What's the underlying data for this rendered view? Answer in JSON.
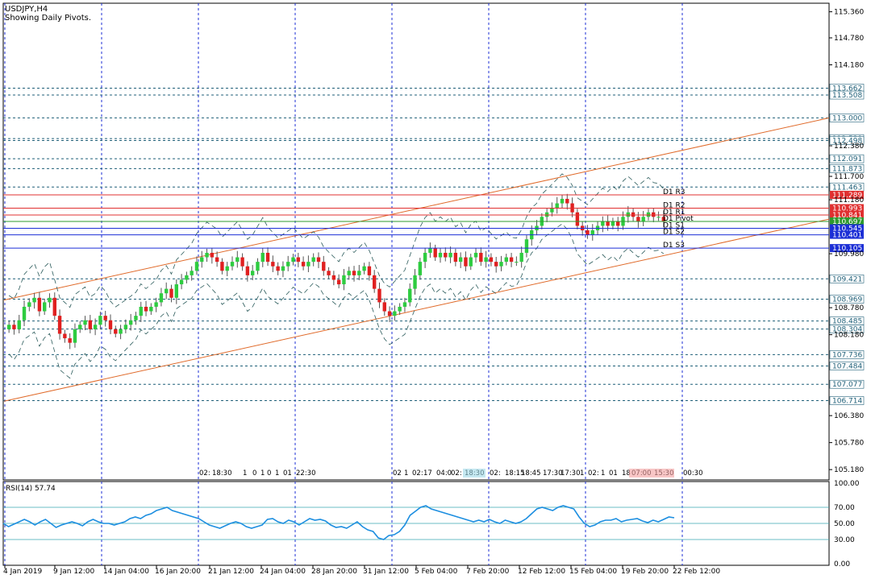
{
  "chart_data": {
    "type": "candlestick",
    "symbol_label": "USDJPY,H4",
    "subtitle": "Showing Daily Pivots.",
    "price_axis": {
      "ylim": [
        104.95,
        115.55
      ],
      "ticks": [
        "115.360",
        "114.780",
        "114.180",
        "112.380",
        "111.700",
        "111.180",
        "109.980",
        "108.780",
        "108.180",
        "106.380",
        "105.780",
        "105.180"
      ]
    },
    "horizontal_levels_dotted": [
      {
        "value": 113.662,
        "label": "113.662"
      },
      {
        "value": 113.508,
        "label": "113.508"
      },
      {
        "value": 113.0,
        "label": "113.000"
      },
      {
        "value": 112.539,
        "label": "112.539"
      },
      {
        "value": 112.498,
        "label": "112.498"
      },
      {
        "value": 112.091,
        "label": "112.091"
      },
      {
        "value": 111.873,
        "label": "111.873"
      },
      {
        "value": 111.463,
        "label": "111.463"
      },
      {
        "value": 109.421,
        "label": "109.421"
      },
      {
        "value": 108.969,
        "label": "108.969"
      },
      {
        "value": 108.485,
        "label": "108.485"
      },
      {
        "value": 108.304,
        "label": "108.304"
      },
      {
        "value": 107.736,
        "label": "107.736"
      },
      {
        "value": 107.484,
        "label": "107.484"
      },
      {
        "value": 107.077,
        "label": "107.077"
      },
      {
        "value": 106.714,
        "label": "106.714"
      }
    ],
    "pivots": [
      {
        "name": "D1 R3",
        "value": 111.289,
        "label": "111.289",
        "color": "#e03030"
      },
      {
        "name": "D1 R2",
        "value": 110.993,
        "label": "110.993",
        "color": "#e03030"
      },
      {
        "name": "D1 R1",
        "value": 110.841,
        "label": "110.841",
        "color": "#e03030"
      },
      {
        "name": "D1 Pivot",
        "value": 110.697,
        "label": "110.697",
        "color": "#2e9a2e"
      },
      {
        "name": "D1 S1",
        "value": 110.545,
        "label": "110.545",
        "color": "#1c2fd6"
      },
      {
        "name": "D1 S2",
        "value": 110.401,
        "label": "110.401",
        "color": "#1c2fd6"
      },
      {
        "name": "D1 S3",
        "value": 110.105,
        "label": "110.105",
        "color": "#1c2fd6"
      }
    ],
    "channel_upper": [
      [
        5,
        108.95
      ],
      [
        1028,
        113.0
      ]
    ],
    "channel_lower": [
      [
        5,
        106.7
      ],
      [
        1028,
        110.75
      ]
    ],
    "close_series": [
      108.4,
      108.3,
      108.5,
      108.8,
      108.9,
      109.0,
      108.7,
      108.9,
      109.0,
      108.6,
      108.2,
      108.1,
      108.0,
      108.3,
      108.4,
      108.5,
      108.3,
      108.4,
      108.6,
      108.5,
      108.3,
      108.2,
      108.3,
      108.4,
      108.5,
      108.6,
      108.8,
      108.7,
      108.8,
      108.9,
      109.1,
      109.2,
      109.0,
      109.3,
      109.4,
      109.5,
      109.6,
      109.8,
      109.9,
      110.0,
      109.9,
      109.8,
      109.6,
      109.7,
      109.8,
      109.9,
      109.7,
      109.5,
      109.6,
      109.8,
      110.0,
      109.8,
      109.7,
      109.6,
      109.7,
      109.8,
      109.9,
      109.8,
      109.7,
      109.8,
      109.9,
      109.8,
      109.6,
      109.5,
      109.4,
      109.3,
      109.5,
      109.6,
      109.5,
      109.6,
      109.7,
      109.5,
      109.2,
      108.9,
      108.7,
      108.6,
      108.7,
      108.8,
      108.9,
      109.2,
      109.5,
      109.8,
      110.0,
      110.1,
      109.9,
      110.0,
      109.9,
      110.0,
      109.8,
      109.9,
      109.7,
      109.9,
      110.0,
      109.8,
      109.9,
      109.8,
      109.7,
      109.8,
      109.9,
      109.8,
      109.8,
      110.0,
      110.3,
      110.5,
      110.6,
      110.8,
      110.9,
      111.0,
      111.1,
      111.2,
      111.1,
      110.9,
      110.6,
      110.5,
      110.4,
      110.5,
      110.6,
      110.7,
      110.6,
      110.7,
      110.6,
      110.8,
      110.9,
      110.8,
      110.7,
      110.8,
      110.9,
      110.8,
      110.8,
      110.7
    ],
    "sessions_labels": [
      "02:",
      "18:30",
      "1",
      "0",
      "1",
      "0",
      "1",
      "01",
      "22:30",
      "02",
      "1",
      "02:",
      "17",
      "04:0",
      "02:",
      "18:30",
      "02:",
      "18:15",
      "18:45",
      "17:30",
      "17:30",
      "1",
      "02:",
      "1",
      "01",
      "18",
      "07:00",
      "15:30",
      "00:30"
    ],
    "time_axis": [
      "4 Jan 2019",
      "9 Jan 12:00",
      "14 Jan 04:00",
      "16 Jan 20:00",
      "21 Jan 12:00",
      "24 Jan 04:00",
      "28 Jan 20:00",
      "31 Jan 12:00",
      "5 Feb 04:00",
      "7 Feb 20:00",
      "12 Feb 12:00",
      "15 Feb 04:00",
      "19 Feb 20:00",
      "22 Feb 12:00"
    ],
    "rsi": {
      "label": "RSI(14) 57.74",
      "ylim": [
        0,
        100
      ],
      "ticks": [
        "100.00",
        "70.00",
        "50.00",
        "30.00",
        "0.00"
      ],
      "levels": [
        70,
        50,
        30
      ],
      "values": [
        50,
        46,
        49,
        52,
        55,
        52,
        48,
        52,
        55,
        50,
        45,
        48,
        50,
        52,
        50,
        47,
        52,
        55,
        52,
        50,
        50,
        48,
        50,
        52,
        56,
        58,
        56,
        60,
        62,
        66,
        68,
        70,
        66,
        64,
        62,
        60,
        58,
        56,
        52,
        48,
        46,
        44,
        47,
        50,
        52,
        50,
        46,
        44,
        46,
        48,
        55,
        56,
        52,
        50,
        54,
        52,
        48,
        52,
        56,
        54,
        55,
        53,
        48,
        45,
        46,
        44,
        48,
        52,
        46,
        42,
        40,
        32,
        30,
        35,
        36,
        40,
        48,
        60,
        65,
        70,
        72,
        68,
        66,
        64,
        62,
        60,
        58,
        56,
        54,
        52,
        54,
        52,
        55,
        52,
        50,
        54,
        52,
        50,
        52,
        56,
        62,
        68,
        70,
        68,
        66,
        70,
        72,
        70,
        68,
        58,
        50,
        46,
        48,
        52,
        54,
        54,
        56,
        52,
        54,
        55,
        56,
        53,
        51,
        54,
        52,
        55,
        58,
        57
      ]
    }
  }
}
